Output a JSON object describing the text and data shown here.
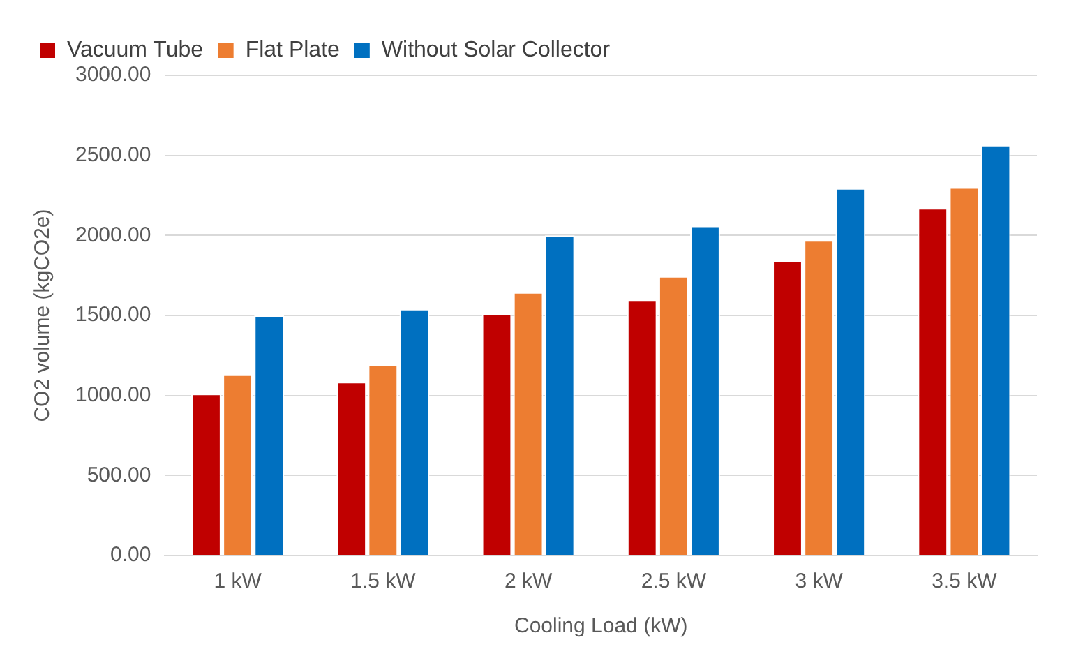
{
  "chart_data": {
    "type": "bar",
    "xlabel": "Cooling Load (kW)",
    "ylabel": "CO2 volume (kgCO2e)",
    "categories": [
      "1 kW",
      "1.5 kW",
      "2 kW",
      "2.5 kW",
      "3 kW",
      "3.5 kW"
    ],
    "series": [
      {
        "name": "Vacuum Tube",
        "color": "#c00000",
        "values": [
          1010,
          1085,
          1510,
          1595,
          1845,
          2170
        ]
      },
      {
        "name": "Flat Plate",
        "color": "#ed7d31",
        "values": [
          1130,
          1190,
          1645,
          1745,
          1970,
          2300
        ]
      },
      {
        "name": "Without Solar Collector",
        "color": "#0070c0",
        "values": [
          1500,
          1540,
          2000,
          2060,
          2295,
          2565
        ]
      }
    ],
    "ylim": [
      0,
      3000
    ],
    "yticks": [
      {
        "value": 0,
        "label": "0.00"
      },
      {
        "value": 500,
        "label": "500.00"
      },
      {
        "value": 1000,
        "label": "1000.00"
      },
      {
        "value": 1500,
        "label": "1500.00"
      },
      {
        "value": 2000,
        "label": "2000.00"
      },
      {
        "value": 2500,
        "label": "2500.00"
      },
      {
        "value": 3000,
        "label": "3000.00"
      }
    ],
    "grid": "y",
    "legend": "top left"
  }
}
